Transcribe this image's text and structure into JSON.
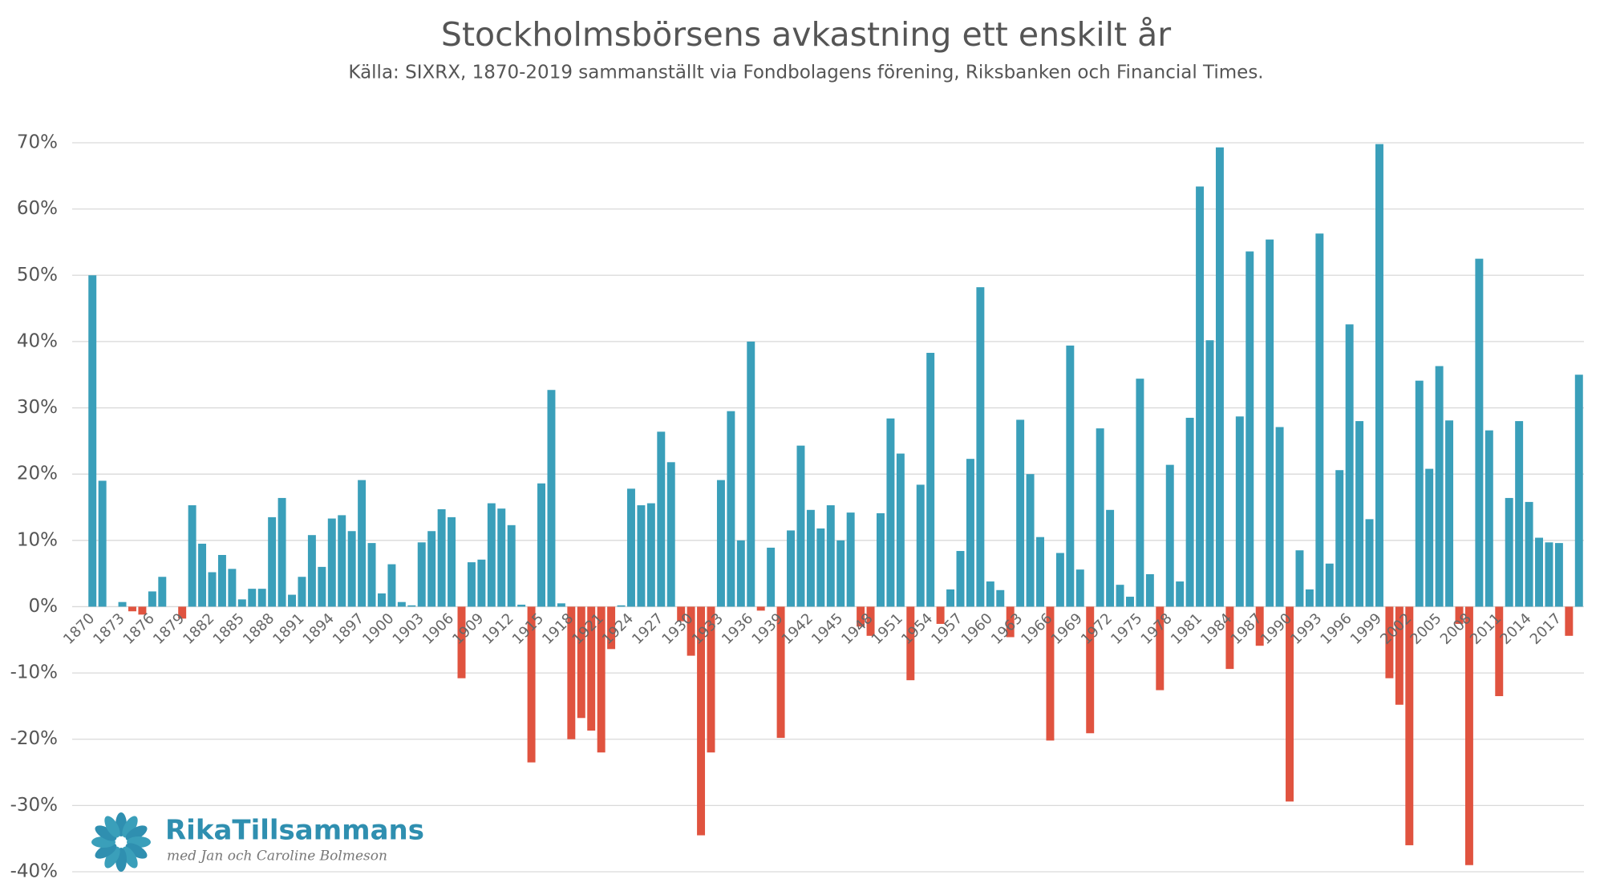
{
  "chart_data": {
    "type": "bar",
    "title": "Stockholmsbörsens avkastning ett enskilt år",
    "subtitle": "Källa: SIXRX, 1870-2019 sammanställt via Fondbolagens förening, Riksbanken och Financial Times.",
    "categories": [
      "1870",
      null,
      null,
      "1873",
      null,
      null,
      "1876",
      null,
      null,
      "1879",
      null,
      null,
      "1882",
      null,
      null,
      "1885",
      null,
      null,
      "1888",
      null,
      null,
      "1891",
      null,
      null,
      "1894",
      null,
      null,
      "1897",
      null,
      null,
      "1900",
      null,
      null,
      "1903",
      null,
      null,
      "1906",
      null,
      null,
      "1909",
      null,
      null,
      "1912",
      null,
      null,
      "1915",
      null,
      null,
      "1918",
      null,
      null,
      "1921",
      null,
      null,
      "1924",
      null,
      null,
      "1927",
      null,
      null,
      "1930",
      null,
      null,
      "1933",
      null,
      null,
      "1936",
      null,
      null,
      "1939",
      null,
      null,
      "1942",
      null,
      null,
      "1945",
      null,
      null,
      "1948",
      null,
      null,
      "1951",
      null,
      null,
      "1954",
      null,
      null,
      "1957",
      null,
      null,
      "1960",
      null,
      null,
      "1963",
      null,
      null,
      "1966",
      null,
      null,
      "1969",
      null,
      null,
      "1972",
      null,
      null,
      "1975",
      null,
      null,
      "1978",
      null,
      null,
      "1981",
      null,
      null,
      "1984",
      null,
      null,
      "1987",
      null,
      null,
      "1990",
      null,
      null,
      "1993",
      null,
      null,
      "1996",
      null,
      null,
      "1999",
      null,
      null,
      "2002",
      null,
      null,
      "2005",
      null,
      null,
      "2008",
      null,
      null,
      "2011",
      null,
      null,
      "2014",
      null,
      null,
      "2017",
      null,
      null
    ],
    "values": [
      50,
      19,
      0,
      0.7,
      -0.7,
      -1.2,
      2.3,
      4.5,
      0,
      -1.8,
      15.3,
      9.5,
      5.2,
      7.8,
      5.7,
      1.1,
      2.7,
      2.7,
      13.5,
      16.4,
      1.8,
      4.5,
      10.8,
      6.0,
      13.3,
      13.8,
      11.4,
      19.1,
      9.6,
      2.0,
      6.4,
      0.7,
      0.2,
      9.7,
      11.4,
      14.7,
      13.5,
      -10.8,
      6.7,
      7.1,
      15.6,
      14.8,
      12.3,
      0.3,
      -23.5,
      18.6,
      32.7,
      0.5,
      -20,
      -16.8,
      -18.7,
      -22,
      -6.4,
      0.2,
      17.8,
      15.3,
      15.6,
      26.4,
      21.8,
      -2.2,
      -7.4,
      -34.5,
      -22,
      19.1,
      29.5,
      10,
      40,
      -0.6,
      8.9,
      -19.8,
      11.5,
      24.3,
      14.6,
      11.8,
      15.3,
      10,
      14.2,
      -3,
      -4.4,
      14.1,
      28.4,
      23.1,
      -11.1,
      18.4,
      38.3,
      -2.6,
      2.6,
      8.4,
      22.3,
      48.2,
      3.8,
      2.5,
      -4.6,
      28.2,
      20,
      10.5,
      -20.2,
      8.1,
      39.4,
      5.6,
      -19.1,
      26.9,
      14.6,
      3.3,
      1.5,
      34.4,
      4.9,
      -12.6,
      21.4,
      3.8,
      28.5,
      63.4,
      40.2,
      69.3,
      -9.4,
      28.7,
      53.6,
      -5.9,
      55.4,
      27.1,
      -29.4,
      8.5,
      2.6,
      56.3,
      6.5,
      20.6,
      42.6,
      28,
      13.2,
      69.8,
      -10.8,
      -14.8,
      -36,
      34.1,
      20.8,
      36.3,
      28.1,
      -2.6,
      -39,
      52.5,
      26.6,
      -13.5,
      16.4,
      28,
      15.8,
      10.4,
      9.7,
      9.6,
      -4.4,
      35
    ],
    "color": "#3a9fba",
    "negative_color": "#e0533f",
    "ylim": [
      -40,
      70
    ],
    "yticks": [
      {
        "value": -40,
        "label": "-40%"
      },
      {
        "value": -30,
        "label": "-30%"
      },
      {
        "value": -20,
        "label": "-20%"
      },
      {
        "value": -10,
        "label": "-10%"
      },
      {
        "value": 0,
        "label": "0%"
      },
      {
        "value": 10,
        "label": "10%"
      },
      {
        "value": 20,
        "label": "20%"
      },
      {
        "value": 30,
        "label": "30%"
      },
      {
        "value": 40,
        "label": "40%"
      },
      {
        "value": 50,
        "label": "50%"
      },
      {
        "value": 60,
        "label": "60%"
      },
      {
        "value": 70,
        "label": "70%"
      }
    ],
    "grid": true,
    "logo": {
      "name": "RikaTillsammans",
      "tagline": "med Jan och Caroline Bolmeson"
    }
  }
}
